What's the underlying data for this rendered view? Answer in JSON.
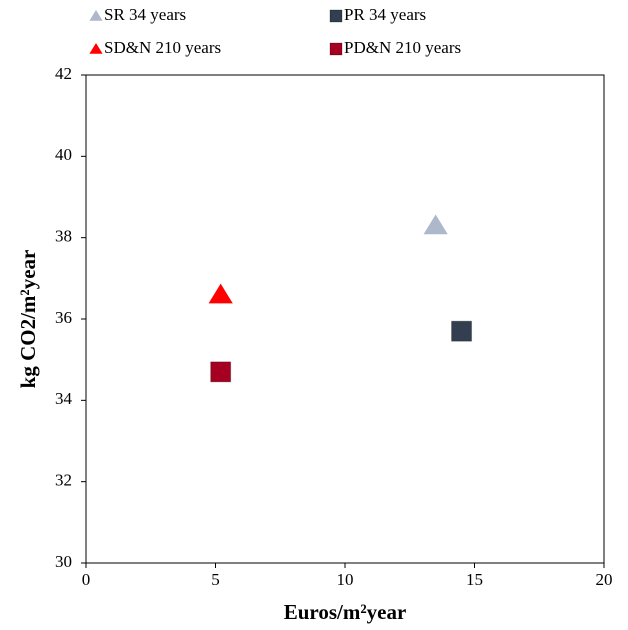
{
  "chart_data": {
    "type": "scatter",
    "x_label": "Euros/m²year",
    "y_label": "kg CO2/m²year",
    "xlim": [
      0,
      20
    ],
    "xticks": [
      0,
      5,
      10,
      15,
      20
    ],
    "ylim": [
      30,
      42
    ],
    "yticks": [
      30,
      32,
      34,
      36,
      38,
      40,
      42
    ],
    "grid": false,
    "legend": "top",
    "series": [
      {
        "name": "SR 34 years",
        "color": "#adb9ca",
        "marker": "triangle",
        "x": [
          13.5
        ],
        "values": [
          38.3
        ]
      },
      {
        "name": "PR 34 years",
        "color": "#333f50",
        "marker": "square",
        "x": [
          14.5
        ],
        "values": [
          35.7
        ]
      },
      {
        "name": "SD&N 210 years",
        "color": "#ff0000",
        "marker": "triangle",
        "x": [
          5.2
        ],
        "values": [
          36.6
        ]
      },
      {
        "name": "PD&N 210 years",
        "color": "#a50021",
        "marker": "square",
        "x": [
          5.2
        ],
        "values": [
          34.7
        ]
      }
    ]
  }
}
